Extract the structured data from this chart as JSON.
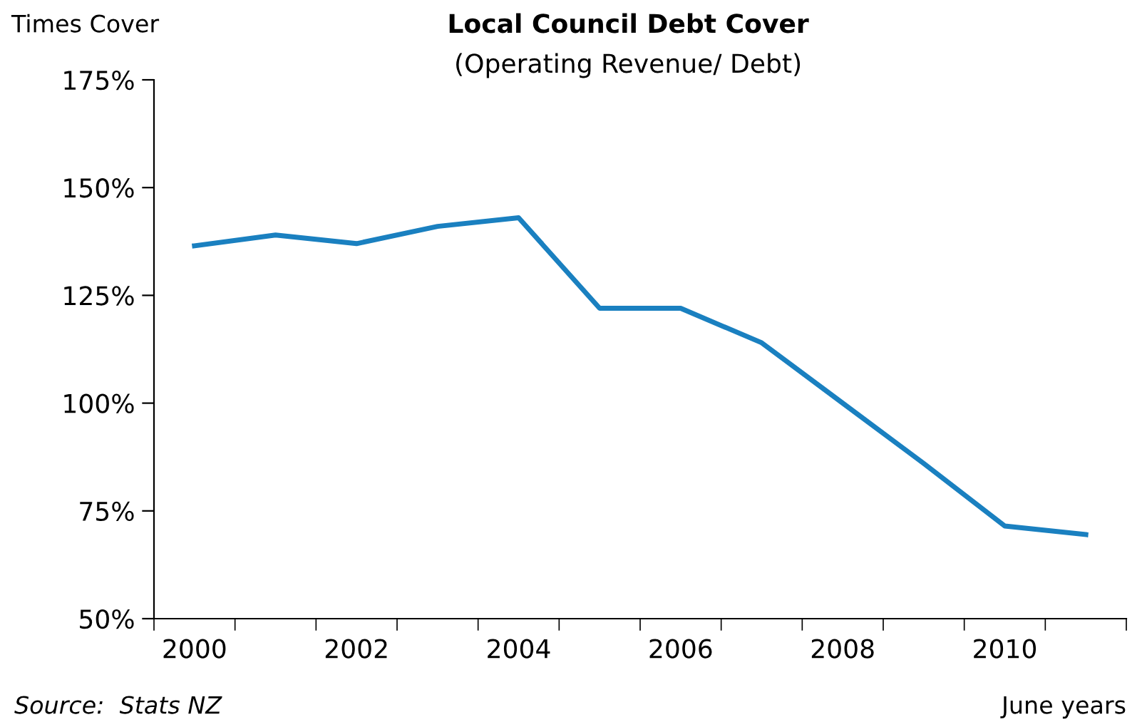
{
  "chart_data": {
    "type": "line",
    "title": "Local Council Debt Cover",
    "subtitle": "(Operating Revenue/ Debt)",
    "ylabel": "Times Cover",
    "categories": [
      "2000",
      null,
      "2002",
      null,
      "2004",
      null,
      "2006",
      null,
      "2008",
      null,
      "2010",
      null
    ],
    "series": [
      {
        "color": "#1a80c0",
        "values": [
          136.5,
          139,
          137,
          141,
          143,
          122,
          122,
          114,
          100,
          86,
          71.5,
          69.5
        ]
      }
    ],
    "ylim": [
      50,
      175
    ],
    "yticks": [
      {
        "value": 50,
        "label": "50%"
      },
      {
        "value": 75,
        "label": "75%"
      },
      {
        "value": 100,
        "label": "100%"
      },
      {
        "value": 125,
        "label": "125%"
      },
      {
        "value": 150,
        "label": "150%"
      },
      {
        "value": 175,
        "label": "175%"
      }
    ],
    "grid": false,
    "legend": false,
    "marker": "none",
    "line_style": "solid",
    "annotations": [
      "Source:  Stats NZ",
      "June years"
    ]
  }
}
